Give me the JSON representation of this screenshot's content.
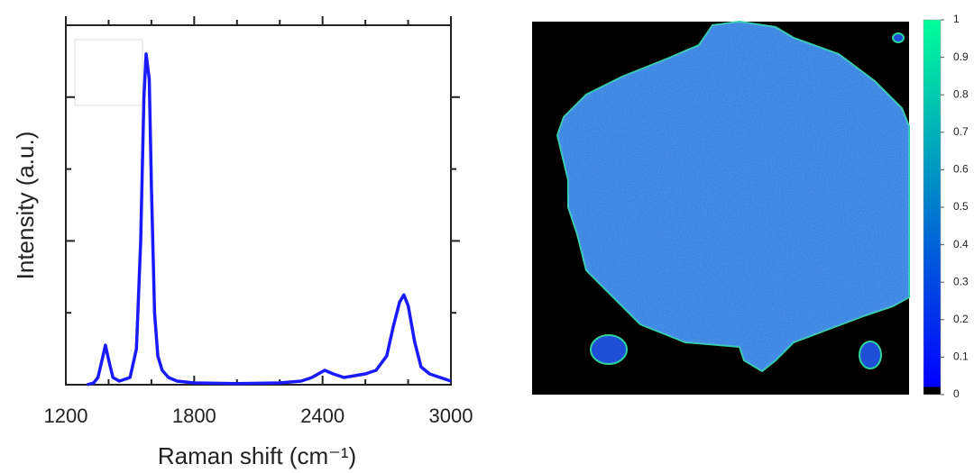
{
  "chart_data": [
    {
      "type": "line",
      "xlabel": "Raman shift (cm⁻¹)",
      "ylabel": "Intensity (a.u.)",
      "x": [
        1300,
        1330,
        1350,
        1370,
        1385,
        1400,
        1420,
        1450,
        1500,
        1530,
        1550,
        1565,
        1575,
        1590,
        1600,
        1615,
        1630,
        1650,
        1680,
        1720,
        1800,
        2000,
        2200,
        2300,
        2350,
        2410,
        2450,
        2500,
        2600,
        2650,
        2700,
        2730,
        2760,
        2780,
        2800,
        2830,
        2860,
        2900,
        2950,
        3000
      ],
      "values": [
        0,
        0.005,
        0.02,
        0.07,
        0.11,
        0.07,
        0.02,
        0.01,
        0.02,
        0.1,
        0.4,
        0.8,
        0.92,
        0.85,
        0.55,
        0.2,
        0.08,
        0.04,
        0.02,
        0.01,
        0.005,
        0.003,
        0.005,
        0.01,
        0.02,
        0.04,
        0.03,
        0.02,
        0.03,
        0.04,
        0.08,
        0.16,
        0.23,
        0.25,
        0.22,
        0.12,
        0.05,
        0.03,
        0.02,
        0.01
      ],
      "color": "#1a1aff",
      "xlim": [
        1200,
        3000
      ],
      "xticks": [
        1200,
        1800,
        2400,
        3000
      ],
      "xminorticks": [
        1400,
        1600,
        2000,
        2200,
        2600,
        2800
      ],
      "ylim": [
        0,
        1
      ],
      "yticks": [
        0.4,
        0.8
      ],
      "yminorticks": [
        0.2,
        0.6
      ]
    },
    {
      "type": "heatmap",
      "colormap": [
        "#000000",
        "#0000ff",
        "#00ff99"
      ],
      "clim": [
        0,
        1
      ],
      "cticks": [
        0,
        0.1,
        0.2,
        0.3,
        0.4,
        0.5,
        0.6,
        0.7,
        0.8,
        0.9,
        1
      ]
    }
  ]
}
